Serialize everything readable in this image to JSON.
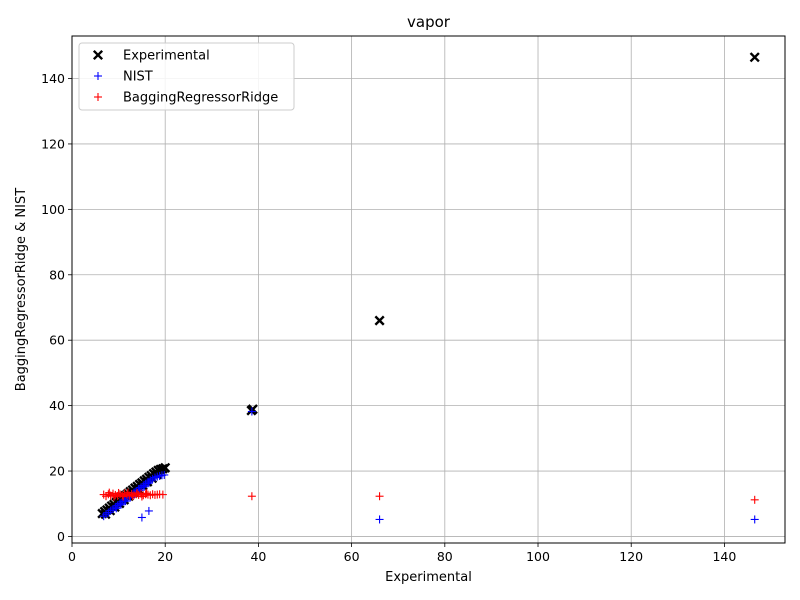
{
  "chart_data": {
    "type": "scatter",
    "title": "vapor",
    "xlabel": "Experimental",
    "ylabel": "BaggingRegressorRidge & NIST",
    "xlim": [
      0,
      153
    ],
    "ylim": [
      -2,
      153
    ],
    "xticks": [
      0,
      20,
      40,
      60,
      80,
      100,
      120,
      140
    ],
    "yticks": [
      0,
      20,
      40,
      60,
      80,
      100,
      120,
      140
    ],
    "grid": true,
    "legend": "top-left",
    "series": [
      {
        "name": "Experimental",
        "marker": "x",
        "color": "#000000",
        "points": [
          [
            6.5,
            7.0
          ],
          [
            7.0,
            7.6
          ],
          [
            7.5,
            8.1
          ],
          [
            8.0,
            8.7
          ],
          [
            8.5,
            9.3
          ],
          [
            9.0,
            9.8
          ],
          [
            9.5,
            10.4
          ],
          [
            10.0,
            10.9
          ],
          [
            10.5,
            11.5
          ],
          [
            11.0,
            12.0
          ],
          [
            11.5,
            12.6
          ],
          [
            12.0,
            13.1
          ],
          [
            12.5,
            13.7
          ],
          [
            13.0,
            14.2
          ],
          [
            13.5,
            14.8
          ],
          [
            14.0,
            15.3
          ],
          [
            14.5,
            15.9
          ],
          [
            15.0,
            16.4
          ],
          [
            15.5,
            17.0
          ],
          [
            16.0,
            17.5
          ],
          [
            16.5,
            18.1
          ],
          [
            17.0,
            18.6
          ],
          [
            17.5,
            19.2
          ],
          [
            18.0,
            19.7
          ],
          [
            18.5,
            20.2
          ],
          [
            19.0,
            20.5
          ],
          [
            19.5,
            20.7
          ],
          [
            20.0,
            21.0
          ],
          [
            7.2,
            6.8
          ],
          [
            8.2,
            7.9
          ],
          [
            9.2,
            9.0
          ],
          [
            10.2,
            10.1
          ],
          [
            11.2,
            11.2
          ],
          [
            12.2,
            12.3
          ],
          [
            13.2,
            13.4
          ],
          [
            14.2,
            14.5
          ],
          [
            15.2,
            15.6
          ],
          [
            16.2,
            16.7
          ],
          [
            17.2,
            17.8
          ],
          [
            18.2,
            18.9
          ],
          [
            38.5,
            38.5
          ],
          [
            38.8,
            38.9
          ],
          [
            66.0,
            66.0
          ],
          [
            146.5,
            146.5
          ]
        ]
      },
      {
        "name": "NIST",
        "marker": "+",
        "color": "#0000ff",
        "points": [
          [
            6.8,
            6.2
          ],
          [
            7.3,
            6.8
          ],
          [
            7.8,
            7.3
          ],
          [
            8.3,
            7.9
          ],
          [
            8.8,
            8.4
          ],
          [
            9.3,
            9.0
          ],
          [
            9.8,
            9.5
          ],
          [
            10.3,
            10.1
          ],
          [
            10.8,
            10.6
          ],
          [
            11.3,
            11.2
          ],
          [
            11.8,
            11.7
          ],
          [
            12.3,
            12.3
          ],
          [
            12.8,
            12.8
          ],
          [
            13.3,
            13.4
          ],
          [
            13.8,
            13.9
          ],
          [
            14.3,
            14.5
          ],
          [
            14.8,
            15.0
          ],
          [
            15.3,
            15.6
          ],
          [
            15.8,
            16.1
          ],
          [
            16.3,
            16.7
          ],
          [
            16.8,
            17.2
          ],
          [
            17.3,
            17.6
          ],
          [
            17.8,
            18.0
          ],
          [
            18.3,
            18.3
          ],
          [
            18.8,
            18.5
          ],
          [
            19.3,
            18.7
          ],
          [
            19.8,
            18.8
          ],
          [
            9.5,
            8.6
          ],
          [
            10.5,
            9.7
          ],
          [
            11.5,
            10.8
          ],
          [
            12.5,
            11.9
          ],
          [
            13.5,
            13.0
          ],
          [
            14.5,
            14.1
          ],
          [
            15.5,
            15.2
          ],
          [
            16.5,
            16.3
          ],
          [
            15.0,
            5.8
          ],
          [
            16.5,
            7.8
          ],
          [
            38.6,
            38.2
          ],
          [
            66.0,
            5.2
          ],
          [
            146.5,
            5.2
          ]
        ]
      },
      {
        "name": "BaggingRegressorRidge",
        "marker": "+",
        "color": "#ff0000",
        "points": [
          [
            6.8,
            12.8
          ],
          [
            7.3,
            12.3
          ],
          [
            7.8,
            12.9
          ],
          [
            8.3,
            12.5
          ],
          [
            8.8,
            13.1
          ],
          [
            9.3,
            12.7
          ],
          [
            9.8,
            12.4
          ],
          [
            10.3,
            12.9
          ],
          [
            10.8,
            12.6
          ],
          [
            11.3,
            13.2
          ],
          [
            11.8,
            12.8
          ],
          [
            12.3,
            12.5
          ],
          [
            12.8,
            13.0
          ],
          [
            13.3,
            12.6
          ],
          [
            13.8,
            12.9
          ],
          [
            14.3,
            12.7
          ],
          [
            14.8,
            13.1
          ],
          [
            15.3,
            12.6
          ],
          [
            15.8,
            12.9
          ],
          [
            16.3,
            12.8
          ],
          [
            16.8,
            12.6
          ],
          [
            17.3,
            12.9
          ],
          [
            17.8,
            12.7
          ],
          [
            18.3,
            12.8
          ],
          [
            18.8,
            12.9
          ],
          [
            19.5,
            12.8
          ],
          [
            8.0,
            13.4
          ],
          [
            9.0,
            12.1
          ],
          [
            10.0,
            13.3
          ],
          [
            11.0,
            12.2
          ],
          [
            12.0,
            13.4
          ],
          [
            13.0,
            12.3
          ],
          [
            14.0,
            13.3
          ],
          [
            15.0,
            12.2
          ],
          [
            16.0,
            13.2
          ],
          [
            38.6,
            12.3
          ],
          [
            66.0,
            12.3
          ],
          [
            146.5,
            11.2
          ]
        ]
      }
    ]
  }
}
